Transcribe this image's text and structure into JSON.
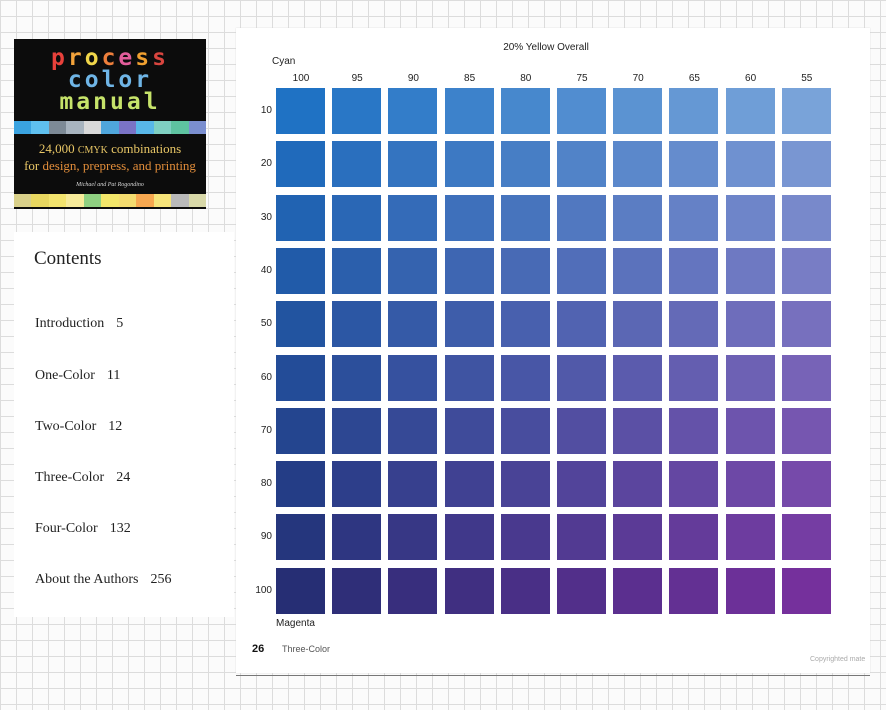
{
  "cover": {
    "title_line1": "process",
    "title_line2": "color",
    "title_line3": "manual",
    "subtitle_number": "24,000",
    "subtitle_cmyk": "CMYK",
    "subtitle_combos": "combinations",
    "subtitle_line2_a": "for",
    "subtitle_line2_b": "design, prepress, and printing",
    "authors": "Michael and Pat Rogondino",
    "stripe_top": [
      "#3aa3e0",
      "#5fc0ef",
      "#7d8a96",
      "#a8b4bf",
      "#d9d9d9",
      "#4fa6dc",
      "#7a73c6",
      "#58b7e8",
      "#7fd0c2",
      "#5ec3a0",
      "#7a8ecf"
    ],
    "stripe_bottom": [
      "#d9d08a",
      "#e8d760",
      "#f3e46e",
      "#f7eb9a",
      "#8fd081",
      "#f2e66a",
      "#f4dc6f",
      "#f7a850",
      "#f6e47a",
      "#b9b9b9",
      "#d8d8a8"
    ]
  },
  "contents": {
    "heading": "Contents",
    "items": [
      {
        "label": "Introduction",
        "page": "5"
      },
      {
        "label": "One-Color",
        "page": "11"
      },
      {
        "label": "Two-Color",
        "page": "12"
      },
      {
        "label": "Three-Color",
        "page": "24"
      },
      {
        "label": "Four-Color",
        "page": "132"
      },
      {
        "label": "About the Authors",
        "page": "256"
      }
    ]
  },
  "page": {
    "title": "20% Yellow Overall",
    "x_axis_name": "Cyan",
    "y_axis_name": "Magenta",
    "columns": [
      "100",
      "95",
      "90",
      "85",
      "80",
      "75",
      "70",
      "65",
      "60",
      "55"
    ],
    "rows": [
      "10",
      "20",
      "30",
      "40",
      "50",
      "60",
      "70",
      "80",
      "90",
      "100"
    ],
    "page_number": "26",
    "section": "Three-Color",
    "copyright": "Copyrighted mate"
  },
  "colors": {
    "top_left": "#1f72c4",
    "top_right": "#79a3d9",
    "bottom_left": "#262e74",
    "bottom_right": "#75309c"
  }
}
